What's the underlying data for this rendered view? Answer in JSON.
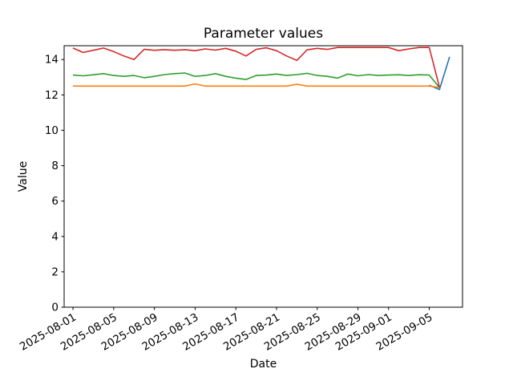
{
  "chart_data": {
    "type": "line",
    "title": "Parameter values",
    "xlabel": "Date",
    "ylabel": "Value",
    "grid": false,
    "legend": false,
    "background": "#ffffff",
    "x_axis": {
      "unit": "days since epoch date",
      "epoch": "2025-08-01",
      "xlim": [
        -0.87,
        38.27
      ],
      "ticks": [
        {
          "day": 0,
          "label": "2025-08-01"
        },
        {
          "day": 4,
          "label": "2025-08-05"
        },
        {
          "day": 8,
          "label": "2025-08-09"
        },
        {
          "day": 12,
          "label": "2025-08-13"
        },
        {
          "day": 16,
          "label": "2025-08-17"
        },
        {
          "day": 20,
          "label": "2025-08-21"
        },
        {
          "day": 24,
          "label": "2025-08-25"
        },
        {
          "day": 28,
          "label": "2025-08-29"
        },
        {
          "day": 31,
          "label": "2025-09-01"
        },
        {
          "day": 35,
          "label": "2025-09-05"
        }
      ],
      "tick_rotation_deg": 30
    },
    "y_axis": {
      "ylim": [
        0,
        14.78
      ],
      "ticks": [
        0,
        2,
        4,
        6,
        8,
        10,
        12,
        14
      ]
    },
    "series": [
      {
        "name": "blue",
        "color": "#1f77b4",
        "day_start": 35,
        "values": [
          12.55,
          12.3,
          14.15
        ]
      },
      {
        "name": "orange",
        "color": "#ff7f0e",
        "day_start": 0,
        "values": [
          12.5,
          12.5,
          12.5,
          12.5,
          12.5,
          12.5,
          12.5,
          12.5,
          12.5,
          12.5,
          12.5,
          12.5,
          12.62,
          12.5,
          12.5,
          12.5,
          12.5,
          12.5,
          12.5,
          12.5,
          12.5,
          12.5,
          12.6,
          12.5,
          12.5,
          12.5,
          12.5,
          12.5,
          12.5,
          12.5,
          12.5,
          12.5,
          12.5,
          12.5,
          12.5,
          12.5,
          12.42
        ]
      },
      {
        "name": "green",
        "color": "#2ca02c",
        "day_start": 0,
        "values": [
          13.12,
          13.08,
          13.14,
          13.2,
          13.1,
          13.05,
          13.1,
          12.97,
          13.05,
          13.15,
          13.2,
          13.24,
          13.05,
          13.1,
          13.2,
          13.05,
          12.95,
          12.87,
          13.1,
          13.12,
          13.18,
          13.1,
          13.15,
          13.22,
          13.1,
          13.05,
          12.95,
          13.18,
          13.08,
          13.15,
          13.1,
          13.12,
          13.14,
          13.1,
          13.14,
          13.12,
          12.42
        ]
      },
      {
        "name": "red",
        "color": "#d62728",
        "day_start": 0,
        "values": [
          14.65,
          14.4,
          14.52,
          14.65,
          14.45,
          14.2,
          14.0,
          14.58,
          14.52,
          14.56,
          14.52,
          14.56,
          14.5,
          14.6,
          14.53,
          14.63,
          14.47,
          14.2,
          14.57,
          14.66,
          14.5,
          14.2,
          13.95,
          14.55,
          14.63,
          14.57,
          14.68,
          14.68,
          14.68,
          14.68,
          14.68,
          14.68,
          14.5,
          14.6,
          14.68,
          14.68,
          12.45
        ]
      }
    ]
  }
}
